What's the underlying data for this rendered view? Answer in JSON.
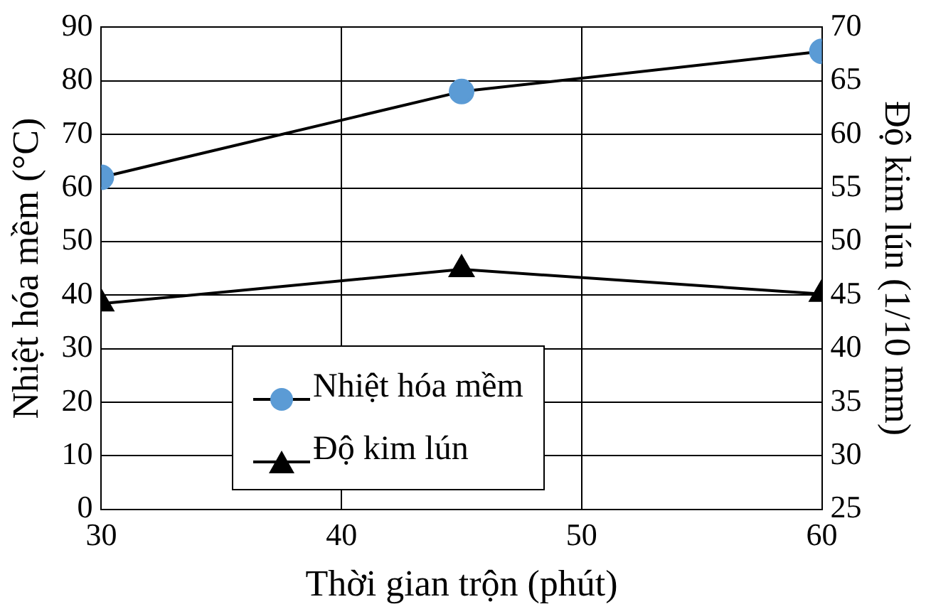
{
  "chart_data": {
    "type": "line",
    "xlabel": "Thời gian trộn (phút)",
    "ylabel": "Nhiệt hóa mềm (°C)",
    "y2label": "Độ kim lún (1/10 mm)",
    "x": [
      30,
      45,
      60
    ],
    "series": [
      {
        "name": "Nhiệt hóa mềm",
        "color": "#5b9bd5",
        "marker": "circle",
        "values": [
          62,
          78,
          85.5
        ]
      },
      {
        "name": "Độ kim lún",
        "color": "#000000",
        "marker": "triangle",
        "axis": "y2",
        "values": [
          44.2,
          47.4,
          45.1
        ]
      }
    ],
    "xlim": [
      30,
      60
    ],
    "xticks": [
      30,
      40,
      50,
      60
    ],
    "ylim": [
      0,
      90
    ],
    "yticks": [
      0,
      10,
      20,
      30,
      40,
      50,
      60,
      70,
      80,
      90
    ],
    "y2lim": [
      25,
      70
    ],
    "y2ticks": [
      25,
      30,
      35,
      40,
      45,
      50,
      55,
      60,
      65,
      70
    ],
    "grid": true,
    "legend": "bottom"
  }
}
